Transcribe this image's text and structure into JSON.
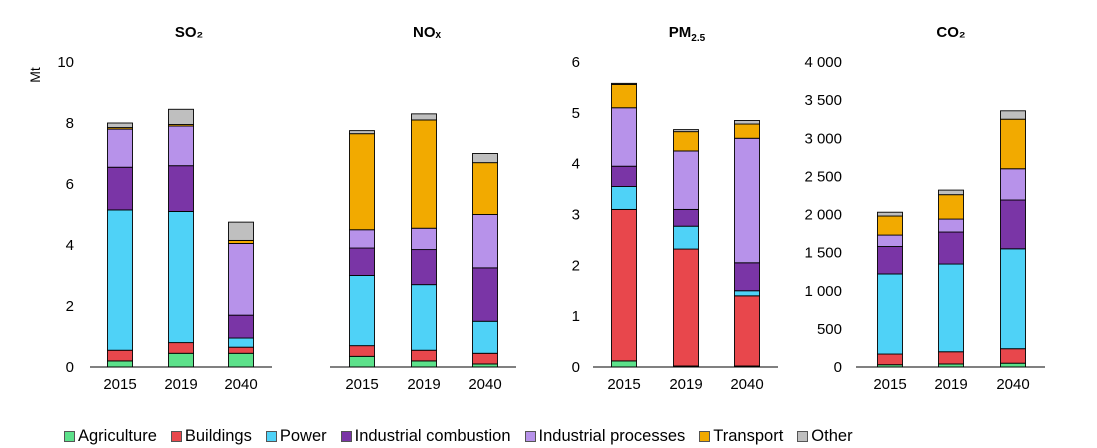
{
  "chart_data": [
    {
      "type": "bar",
      "title": "SO₂",
      "ylabel": "Mt",
      "categories": [
        "2015",
        "2019",
        "2040"
      ],
      "ylim": [
        0,
        10
      ],
      "yticks": [
        0,
        2,
        4,
        6,
        8,
        10
      ],
      "ytick_labels": [
        "0",
        "2",
        "4",
        "6",
        "8",
        "10"
      ],
      "series": [
        {
          "name": "Agriculture",
          "values": [
            0.2,
            0.45,
            0.45
          ]
        },
        {
          "name": "Buildings",
          "values": [
            0.35,
            0.35,
            0.2
          ]
        },
        {
          "name": "Power",
          "values": [
            4.6,
            4.3,
            0.3
          ]
        },
        {
          "name": "Industrial combustion",
          "values": [
            1.4,
            1.5,
            0.75
          ]
        },
        {
          "name": "Industrial processes",
          "values": [
            1.25,
            1.3,
            2.35
          ]
        },
        {
          "name": "Transport",
          "values": [
            0.05,
            0.05,
            0.1
          ]
        },
        {
          "name": "Other",
          "values": [
            0.15,
            0.5,
            0.6
          ]
        }
      ]
    },
    {
      "type": "bar",
      "title": "NOₓ",
      "categories": [
        "2015",
        "2019",
        "2040"
      ],
      "ylim": [
        0,
        10
      ],
      "series": [
        {
          "name": "Agriculture",
          "values": [
            0.35,
            0.2,
            0.1
          ]
        },
        {
          "name": "Buildings",
          "values": [
            0.35,
            0.35,
            0.35
          ]
        },
        {
          "name": "Power",
          "values": [
            2.3,
            2.15,
            1.05
          ]
        },
        {
          "name": "Industrial combustion",
          "values": [
            0.9,
            1.15,
            1.75
          ]
        },
        {
          "name": "Industrial processes",
          "values": [
            0.6,
            0.7,
            1.75
          ]
        },
        {
          "name": "Transport",
          "values": [
            3.15,
            3.55,
            1.7
          ]
        },
        {
          "name": "Other",
          "values": [
            0.1,
            0.2,
            0.3
          ]
        }
      ]
    },
    {
      "type": "bar",
      "title": "PM2.5",
      "categories": [
        "2015",
        "2019",
        "2040"
      ],
      "ylim": [
        0,
        6
      ],
      "yticks": [
        0,
        1,
        2,
        3,
        4,
        5,
        6
      ],
      "ytick_labels": [
        "0",
        "1",
        "2",
        "3",
        "4",
        "5",
        "6"
      ],
      "series": [
        {
          "name": "Agriculture",
          "values": [
            0.12,
            0.02,
            0.02
          ]
        },
        {
          "name": "Buildings",
          "values": [
            2.98,
            2.3,
            1.38
          ]
        },
        {
          "name": "Power",
          "values": [
            0.45,
            0.45,
            0.1
          ]
        },
        {
          "name": "Industrial combustion",
          "values": [
            0.4,
            0.33,
            0.55
          ]
        },
        {
          "name": "Industrial processes",
          "values": [
            1.15,
            1.15,
            2.45
          ]
        },
        {
          "name": "Transport",
          "values": [
            0.46,
            0.38,
            0.28
          ]
        },
        {
          "name": "Other",
          "values": [
            0.02,
            0.04,
            0.07
          ]
        }
      ]
    },
    {
      "type": "bar",
      "title": "CO₂",
      "categories": [
        "2015",
        "2019",
        "2040"
      ],
      "ylim": [
        0,
        4000
      ],
      "yticks": [
        0,
        500,
        1000,
        1500,
        2000,
        2500,
        3000,
        3500,
        4000
      ],
      "ytick_labels": [
        "0",
        "500",
        "1 000",
        "1 500",
        "2 000",
        "2 500",
        "3 000",
        "3 500",
        "4 000"
      ],
      "series": [
        {
          "name": "Agriculture",
          "values": [
            30,
            40,
            50
          ]
        },
        {
          "name": "Buildings",
          "values": [
            140,
            160,
            190
          ]
        },
        {
          "name": "Power",
          "values": [
            1050,
            1150,
            1310
          ]
        },
        {
          "name": "Industrial combustion",
          "values": [
            360,
            420,
            640
          ]
        },
        {
          "name": "Industrial processes",
          "values": [
            150,
            170,
            410
          ]
        },
        {
          "name": "Transport",
          "values": [
            250,
            320,
            650
          ]
        },
        {
          "name": "Other",
          "values": [
            50,
            60,
            110
          ]
        }
      ]
    }
  ],
  "legend": {
    "items": [
      {
        "label": "Agriculture",
        "color": "#5CE18A"
      },
      {
        "label": "Buildings",
        "color": "#E8474C"
      },
      {
        "label": "Power",
        "color": "#4FD2F7"
      },
      {
        "label": "Industrial combustion",
        "color": "#7A35A6"
      },
      {
        "label": "Industrial processes",
        "color": "#B792EA"
      },
      {
        "label": "Transport",
        "color": "#F2AA00"
      },
      {
        "label": "Other",
        "color": "#BFBFBF"
      }
    ]
  }
}
